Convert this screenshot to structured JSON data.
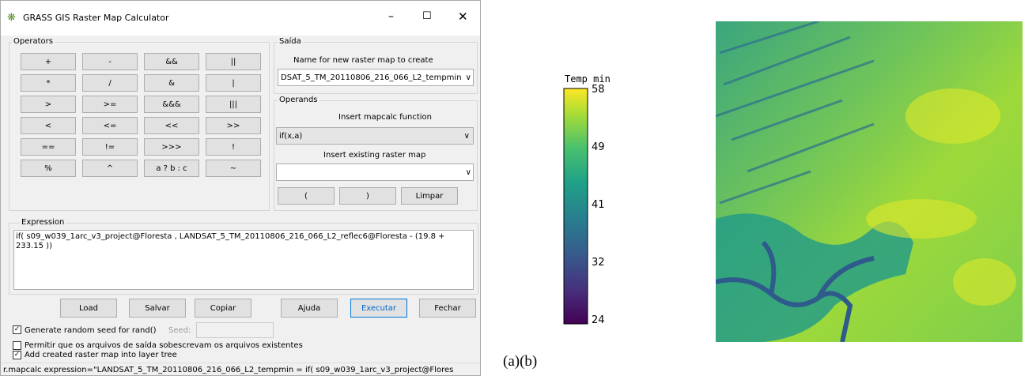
{
  "dialog": {
    "title": "GRASS GIS Raster Map Calculator",
    "operators": {
      "label": "Operators",
      "rows": [
        [
          "+",
          "-",
          "&&",
          "||"
        ],
        [
          "*",
          "/",
          "&",
          "|"
        ],
        [
          ">",
          ">=",
          "&&&",
          "|||"
        ],
        [
          "<",
          "<=",
          "<<",
          ">>"
        ],
        [
          "==",
          "!=",
          ">>>",
          "!"
        ],
        [
          "%",
          "^",
          "a ? b : c",
          "~"
        ]
      ]
    },
    "output": {
      "label": "Saída",
      "prompt": "Name for new raster map to create",
      "name": "DSAT_5_TM_20110806_216_066_L2_tempmin"
    },
    "operands": {
      "label": "Operands",
      "function_prompt": "Insert mapcalc function",
      "function": "if(x,a)",
      "map_prompt": "Insert existing raster map",
      "buttons": [
        "(",
        ")",
        "Limpar"
      ]
    },
    "expression": {
      "label": "Expression",
      "text": "if( s09_w039_1arc_v3_project@Floresta , LANDSAT_5_TM_20110806_216_066_L2_reflec6@Floresta - (19.8 + 233.15 ))"
    },
    "buttons": [
      "Load",
      "Salvar",
      "Copiar",
      "Ajuda",
      "Executar",
      "Fechar"
    ],
    "seed_check": "Generate random seed for rand()",
    "seed_label": "Seed:",
    "overwrite_check": "Permitir que os arquivos de saída sobescrevam os arquivos existentes",
    "add_check": "Add created raster map into layer tree",
    "status": "r.mapcalc expression=\"LANDSAT_5_TM_20110806_216_066_L2_tempmin = if( s09_w039_1arc_v3_project@Flores"
  },
  "colorbar": {
    "title": "Temp min",
    "labels": [
      "58",
      "49",
      "41",
      "32",
      "24"
    ]
  },
  "caption": "(a)(b)"
}
